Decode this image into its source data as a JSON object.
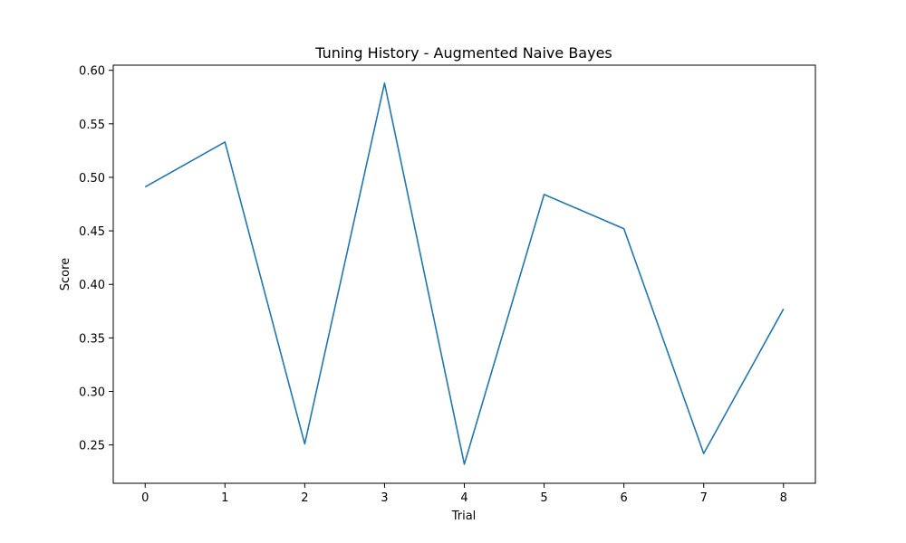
{
  "chart_data": {
    "type": "line",
    "title": "Tuning History - Augmented Naive Bayes",
    "xlabel": "Trial",
    "ylabel": "Score",
    "x": [
      0,
      1,
      2,
      3,
      4,
      5,
      6,
      7,
      8
    ],
    "series": [
      {
        "values": [
          0.491,
          0.533,
          0.251,
          0.588,
          0.232,
          0.484,
          0.452,
          0.242,
          0.377
        ],
        "color": "#1f77b4"
      }
    ],
    "xlim": [
      -0.4,
      8.4
    ],
    "ylim": [
      0.2142,
      0.6048
    ],
    "xticks": [
      "0",
      "1",
      "2",
      "3",
      "4",
      "5",
      "6",
      "7",
      "8"
    ],
    "yticks": [
      "0.25",
      "0.30",
      "0.35",
      "0.40",
      "0.45",
      "0.50",
      "0.55",
      "0.60"
    ],
    "grid": false,
    "legend": "none"
  }
}
